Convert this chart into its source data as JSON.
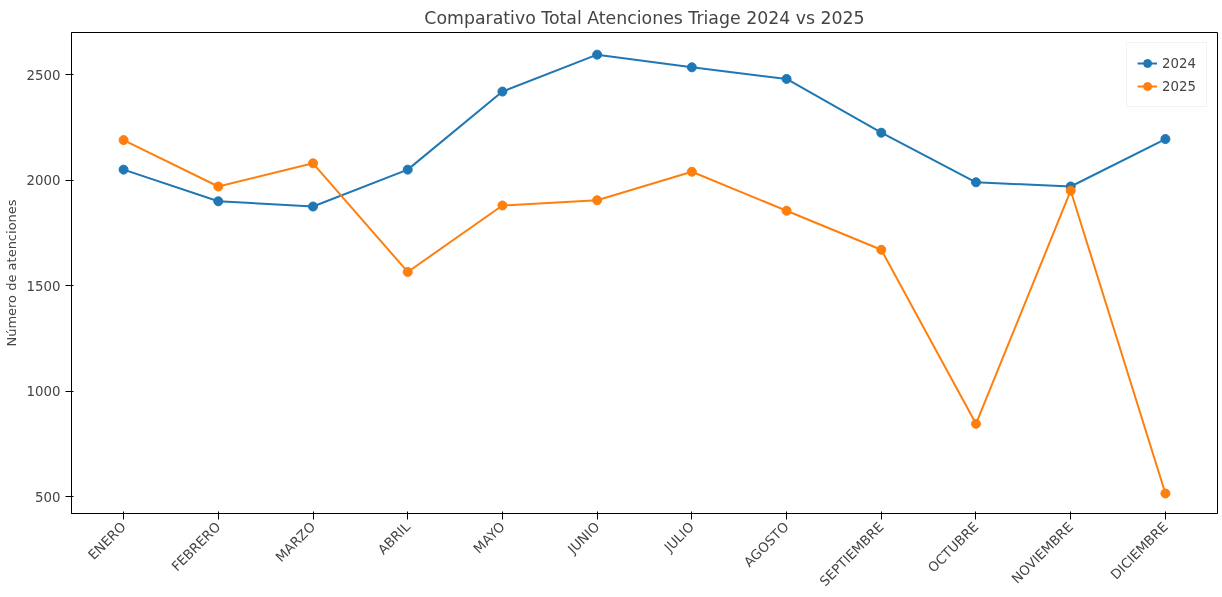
{
  "chart_data": {
    "type": "line",
    "title": "Comparativo Total Atenciones Triage 2024 vs 2025",
    "ylabel": "Número de atenciones",
    "categories": [
      "ENERO",
      "FEBRERO",
      "MARZO",
      "ABRIL",
      "MAYO",
      "JUNIO",
      "JULIO",
      "AGOSTO",
      "SEPTIEMBRE",
      "OCTUBRE",
      "NOVIEMBRE",
      "DICIEMBRE"
    ],
    "series": [
      {
        "name": "2024",
        "color": "#1f77b4",
        "values": [
          2050,
          1900,
          1875,
          2050,
          2420,
          2595,
          2535,
          2480,
          2225,
          1990,
          1970,
          2195
        ]
      },
      {
        "name": "2025",
        "color": "#ff7f0e",
        "values": [
          2190,
          1970,
          2080,
          1565,
          1880,
          1905,
          2040,
          1855,
          1670,
          845,
          1950,
          515
        ]
      }
    ],
    "ylim": [
      420,
      2700
    ],
    "yticks": [
      500,
      1000,
      1500,
      2000,
      2500
    ],
    "grid": false,
    "legend": "top right",
    "marker": "circle",
    "line_style": "solid"
  }
}
